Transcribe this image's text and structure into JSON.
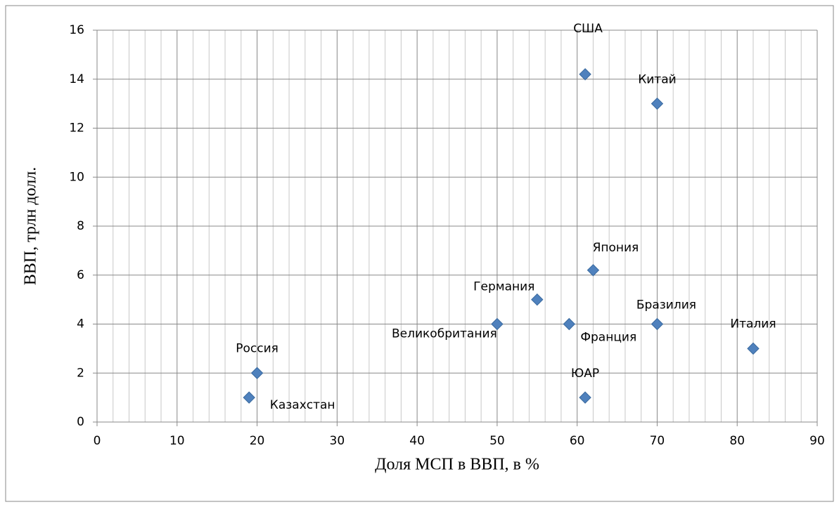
{
  "chart_data": {
    "type": "scatter",
    "xlabel": "Доля МСП в ВВП, в %",
    "ylabel": "ВВП, трлн долл.",
    "labels": [
      "США",
      "Китай",
      "Япония",
      "Германия",
      "Великобритания",
      "Франция",
      "Бразилия",
      "Италия",
      "ЮАР",
      "Россия",
      "Казахстан"
    ],
    "x": [
      61,
      70,
      62,
      55,
      50,
      59,
      70,
      82,
      61,
      20,
      19
    ],
    "values": [
      14.2,
      13,
      6.2,
      5,
      4,
      4,
      4,
      3,
      1,
      2,
      1
    ],
    "color": "#4f81bd",
    "xlim": [
      0,
      90
    ],
    "xticks": [
      0,
      10,
      20,
      30,
      40,
      50,
      60,
      70,
      80,
      90
    ],
    "ylim": [
      0,
      16
    ],
    "yticks": [
      0,
      2,
      4,
      6,
      8,
      10,
      12,
      14,
      16
    ],
    "grid": true
  }
}
